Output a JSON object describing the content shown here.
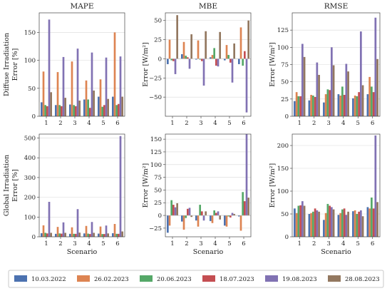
{
  "colors": [
    "#4c72b0",
    "#dd8452",
    "#55a868",
    "#c44e52",
    "#8172b3",
    "#937860"
  ],
  "chart_data": [
    {
      "id": "diffuse-mape",
      "type": "bar",
      "title": "MAPE",
      "ylabel_lines": [
        "Diffuse Irradiation",
        "Error [%]"
      ],
      "xlabel": "",
      "categories": [
        "1",
        "2",
        "3",
        "4",
        "5",
        "6"
      ],
      "ylim": [
        0,
        185
      ],
      "yticks": [
        0,
        50,
        100,
        150
      ],
      "ytick_labels": [
        "0",
        "50",
        "100",
        "150"
      ],
      "grid": true,
      "series": [
        {
          "name": "10.03.2022",
          "values": [
            25,
            20,
            21,
            30,
            35,
            35
          ]
        },
        {
          "name": "26.02.2023",
          "values": [
            80,
            79,
            98,
            64,
            66,
            150
          ]
        },
        {
          "name": "20.06.2023",
          "values": [
            20,
            20,
            20,
            30,
            17,
            20
          ]
        },
        {
          "name": "18.07.2023",
          "values": [
            18,
            18,
            18,
            15,
            20,
            22
          ]
        },
        {
          "name": "19.08.2023",
          "values": [
            173,
            106,
            121,
            114,
            105,
            107
          ]
        },
        {
          "name": "28.08.2023",
          "values": [
            43,
            33,
            28,
            46,
            31,
            35
          ]
        }
      ]
    },
    {
      "id": "diffuse-mbe",
      "type": "bar",
      "title": "MBE",
      "ylabel_lines": [
        "Error [W/m²]"
      ],
      "xlabel": "",
      "categories": [
        "1",
        "2",
        "3",
        "4",
        "5",
        "6"
      ],
      "ylim": [
        -75,
        60
      ],
      "yticks": [
        -50,
        -25,
        0,
        25,
        50
      ],
      "ytick_labels": [
        "−50",
        "−25",
        "0",
        "25",
        "50"
      ],
      "grid": true,
      "series": [
        {
          "name": "10.03.2022",
          "values": [
            -7,
            6,
            -1,
            2,
            -2,
            -7
          ]
        },
        {
          "name": "26.02.2023",
          "values": [
            25,
            22,
            24,
            5,
            18,
            41
          ]
        },
        {
          "name": "20.06.2023",
          "values": [
            -2,
            4,
            -1,
            14,
            5,
            -9
          ]
        },
        {
          "name": "18.07.2023",
          "values": [
            -3,
            2,
            -3,
            -9,
            -5,
            10
          ]
        },
        {
          "name": "19.08.2023",
          "values": [
            -20,
            -13,
            -35,
            -10,
            -31,
            -70
          ]
        },
        {
          "name": "28.08.2023",
          "values": [
            57,
            32,
            36,
            35,
            20,
            50
          ]
        }
      ]
    },
    {
      "id": "diffuse-rmse",
      "type": "bar",
      "title": "RMSE",
      "ylabel_lines": [
        "Error [W/m²]"
      ],
      "xlabel": "",
      "categories": [
        "1",
        "2",
        "3",
        "4",
        "5",
        "6"
      ],
      "ylim": [
        0,
        150
      ],
      "yticks": [
        0,
        25,
        50,
        75,
        100,
        125
      ],
      "ytick_labels": [
        "0",
        "25",
        "50",
        "75",
        "100",
        "125"
      ],
      "grid": true,
      "series": [
        {
          "name": "10.03.2022",
          "values": [
            22,
            23,
            20,
            32,
            26,
            32
          ]
        },
        {
          "name": "26.02.2023",
          "values": [
            35,
            31,
            32,
            30,
            30,
            57
          ]
        },
        {
          "name": "20.06.2023",
          "values": [
            29,
            30,
            39,
            43,
            29,
            43
          ]
        },
        {
          "name": "18.07.2023",
          "values": [
            29,
            28,
            38,
            31,
            35,
            35
          ]
        },
        {
          "name": "19.08.2023",
          "values": [
            105,
            78,
            100,
            76,
            123,
            143
          ]
        },
        {
          "name": "28.08.2023",
          "values": [
            86,
            60,
            74,
            65,
            45,
            83
          ]
        }
      ]
    },
    {
      "id": "global-mape",
      "type": "bar",
      "title": "",
      "ylabel_lines": [
        "Global Irradiation",
        "Error [%]"
      ],
      "xlabel": "Scenario",
      "categories": [
        "1",
        "2",
        "3",
        "4",
        "5",
        "6"
      ],
      "ylim": [
        0,
        520
      ],
      "yticks": [
        0,
        100,
        200,
        300,
        400,
        500
      ],
      "ytick_labels": [
        "0",
        "100",
        "200",
        "300",
        "400",
        "500"
      ],
      "grid": true,
      "series": [
        {
          "name": "10.03.2022",
          "values": [
            18,
            15,
            15,
            17,
            16,
            18
          ]
        },
        {
          "name": "26.02.2023",
          "values": [
            58,
            50,
            48,
            55,
            52,
            65
          ]
        },
        {
          "name": "20.06.2023",
          "values": [
            20,
            17,
            15,
            16,
            14,
            15
          ]
        },
        {
          "name": "18.07.2023",
          "values": [
            17,
            16,
            15,
            14,
            14,
            15
          ]
        },
        {
          "name": "19.08.2023",
          "values": [
            177,
            73,
            140,
            75,
            57,
            510
          ]
        },
        {
          "name": "28.08.2023",
          "values": [
            20,
            20,
            21,
            20,
            17,
            27
          ]
        }
      ]
    },
    {
      "id": "global-mbe",
      "type": "bar",
      "title": "",
      "ylabel_lines": [
        "Error [W/m²]"
      ],
      "xlabel": "Scenario",
      "categories": [
        "1",
        "2",
        "3",
        "4",
        "5",
        "6"
      ],
      "ylim": [
        -42,
        160
      ],
      "yticks": [
        -25,
        0,
        25,
        50,
        75,
        100,
        125,
        150
      ],
      "ytick_labels": [
        "−25",
        "0",
        "25",
        "50",
        "75",
        "100",
        "125",
        "150"
      ],
      "grid": true,
      "series": [
        {
          "name": "10.03.2022",
          "values": [
            -34,
            -12,
            -10,
            -11,
            -20,
            -2
          ]
        },
        {
          "name": "26.02.2023",
          "values": [
            -20,
            -28,
            -22,
            -15,
            -22,
            -30
          ]
        },
        {
          "name": "20.06.2023",
          "values": [
            30,
            -5,
            21,
            10,
            -2,
            46
          ]
        },
        {
          "name": "18.07.2023",
          "values": [
            21,
            13,
            8,
            5,
            -4,
            28
          ]
        },
        {
          "name": "19.08.2023",
          "values": [
            16,
            15,
            -10,
            8,
            5,
            160
          ]
        },
        {
          "name": "28.08.2023",
          "values": [
            24,
            -3,
            8,
            -8,
            3,
            35
          ]
        }
      ]
    },
    {
      "id": "global-rmse",
      "type": "bar",
      "title": "",
      "ylabel_lines": [
        "Error [W/m²]"
      ],
      "xlabel": "Scenario",
      "categories": [
        "1",
        "2",
        "3",
        "4",
        "5",
        "6"
      ],
      "ylim": [
        0,
        225
      ],
      "yticks": [
        0,
        50,
        100,
        150,
        200
      ],
      "ytick_labels": [
        "0",
        "50",
        "100",
        "150",
        "200"
      ],
      "grid": true,
      "series": [
        {
          "name": "10.03.2022",
          "values": [
            62,
            50,
            37,
            48,
            56,
            65
          ]
        },
        {
          "name": "26.02.2023",
          "values": [
            52,
            52,
            52,
            52,
            58,
            62
          ]
        },
        {
          "name": "20.06.2023",
          "values": [
            68,
            55,
            72,
            60,
            50,
            86
          ]
        },
        {
          "name": "18.07.2023",
          "values": [
            69,
            62,
            68,
            62,
            55,
            62
          ]
        },
        {
          "name": "19.08.2023",
          "values": [
            78,
            58,
            65,
            48,
            58,
            222
          ]
        },
        {
          "name": "28.08.2023",
          "values": [
            68,
            55,
            60,
            55,
            45,
            76
          ]
        }
      ]
    }
  ],
  "legend": {
    "placement": "bottom",
    "items": [
      "10.03.2022",
      "26.02.2023",
      "20.06.2023",
      "18.07.2023",
      "19.08.2023",
      "28.08.2023"
    ]
  }
}
